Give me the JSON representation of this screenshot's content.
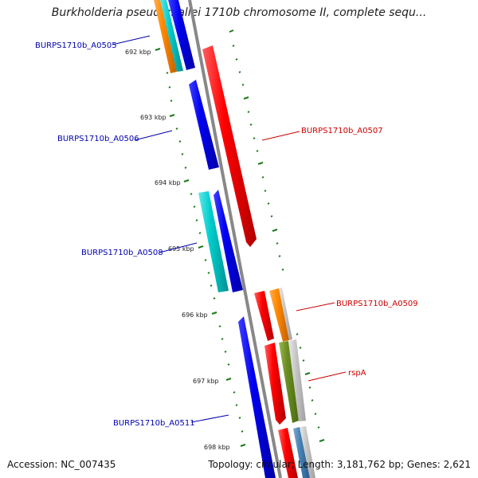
{
  "title": "Burkholderia pseudomallei 1710b chromosome II, complete sequ...",
  "tick_labels": [
    "692 kbp",
    "693 kbp",
    "694 kbp",
    "695 kbp",
    "696 kbp",
    "697 kbp",
    "698 kbp"
  ],
  "gene_labels": [
    {
      "text": "BURPS1710b_A0505",
      "color": "#0000b0"
    },
    {
      "text": "BURPS1710b_A0506",
      "color": "#0000b0"
    },
    {
      "text": "BURPS1710b_A0507",
      "color": "#cc0000"
    },
    {
      "text": "BURPS1710b_A0508",
      "color": "#0000b0"
    },
    {
      "text": "BURPS1710b_A0509",
      "color": "#cc0000"
    },
    {
      "text": "rspA",
      "color": "#cc0000"
    },
    {
      "text": "BURPS1710b_A0511",
      "color": "#0000b0"
    }
  ],
  "footer": {
    "accession": "Accession: NC_007435",
    "summary": "Topology: circular; Length: 3,181,762 bp; Genes: 2,621"
  },
  "colors": {
    "backbone": "#888888",
    "tick": "#1a7a1a",
    "cds_forward": "#e81010",
    "cds_reverse": "#0000e0",
    "orange": "#ff8c00",
    "cyan": "#00c8c8",
    "olive": "#6b8e23",
    "steel": "#4682b4"
  }
}
